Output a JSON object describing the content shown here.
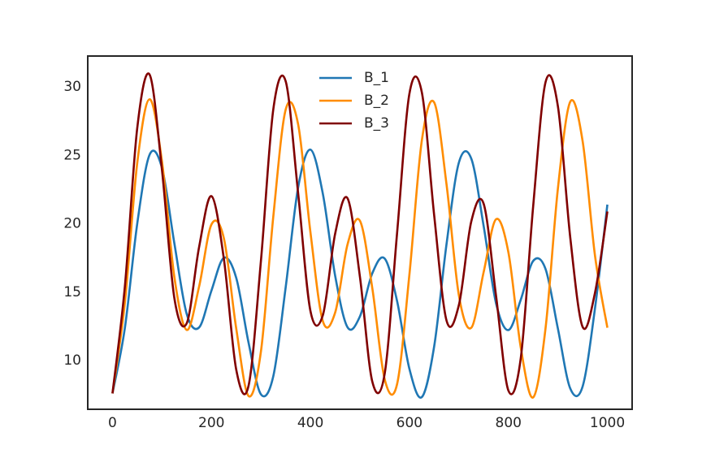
{
  "chart_data": {
    "type": "line",
    "x": [
      0,
      25,
      50,
      75,
      100,
      125,
      150,
      175,
      200,
      225,
      250,
      275,
      300,
      325,
      350,
      375,
      400,
      425,
      450,
      475,
      500,
      525,
      550,
      575,
      600,
      625,
      650,
      675,
      700,
      725,
      750,
      775,
      800,
      825,
      850,
      875,
      900,
      925,
      950,
      975,
      1000
    ],
    "series": [
      {
        "name": "B_1",
        "color": "#1f77b4",
        "values": [
          7.6,
          12.38,
          20.01,
          25.05,
          24.08,
          18.57,
          13.41,
          12.42,
          15.12,
          17.51,
          16.05,
          11.3,
          7.53,
          8.87,
          15.37,
          22.63,
          25.42,
          22.2,
          16.18,
          12.43,
          13.23,
          16.38,
          17.46,
          14.36,
          9.39,
          7.33,
          11.04,
          18.52,
          24.48,
          24.76,
          19.83,
          14.19,
          12.23,
          14.45,
          17.28,
          16.7,
          12.34,
          7.96,
          8.11,
          13.83,
          21.4
        ]
      },
      {
        "name": "B_2",
        "color": "#ff8c00",
        "values": [
          7.6,
          14.24,
          24.44,
          29.1,
          24.55,
          16.11,
          12.24,
          15.41,
          19.95,
          18.95,
          12.35,
          7.41,
          10.68,
          20.55,
          28.35,
          27.29,
          19.37,
          12.89,
          13.52,
          18.5,
          20.22,
          15.29,
          8.63,
          8.27,
          16.3,
          26.07,
          28.87,
          22.87,
          14.76,
          12.4,
          16.47,
          20.33,
          17.91,
          10.95,
          7.31,
          12.35,
          22.57,
          28.92,
          26.03,
          17.66,
          12.4
        ]
      },
      {
        "name": "B_3",
        "color": "#800000",
        "values": [
          7.6,
          15.41,
          26.99,
          30.9,
          23.93,
          14.57,
          12.73,
          18.3,
          22.02,
          17.45,
          9.34,
          8.17,
          17.31,
          28.38,
          30.41,
          22.27,
          13.62,
          13.31,
          19.29,
          21.86,
          16.12,
          8.46,
          9.04,
          19.3,
          29.51,
          29.62,
          20.62,
          12.92,
          14.07,
          20.17,
          21.46,
          14.74,
          7.81,
          10.18,
          21.26,
          30.34,
          28.59,
          18.99,
          12.46,
          14.96,
          20.9
        ]
      }
    ],
    "xlim": [
      -50,
      1050
    ],
    "ylim": [
      6.44,
      32.26
    ],
    "xticks": [
      0,
      200,
      400,
      600,
      800,
      1000
    ],
    "yticks": [
      10,
      15,
      20,
      25,
      30
    ],
    "grid": false,
    "legend": "upper center"
  }
}
